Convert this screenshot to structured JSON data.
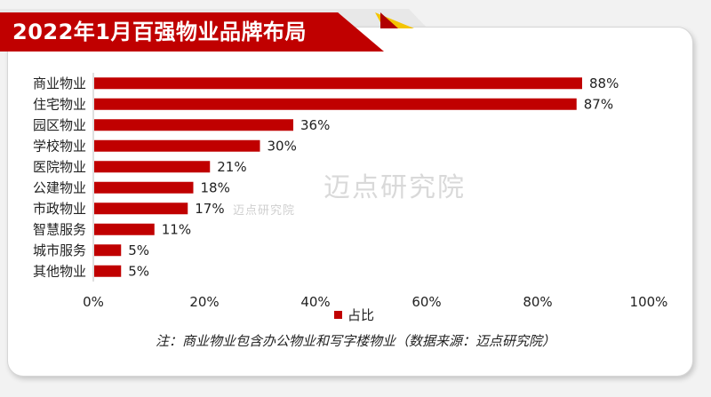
{
  "title": "2022年1月百强物业品牌布局",
  "legend": {
    "label": "占比"
  },
  "note": "注：商业物业包含办公物业和写字楼物业（数据来源：迈点研究院）",
  "watermark": {
    "text": "迈点研究院",
    "small_text": "迈点研究院"
  },
  "colors": {
    "bar": "#c00000",
    "banner": "#c00000",
    "accent": "#f4c400"
  },
  "chart_data": {
    "type": "bar",
    "orientation": "horizontal",
    "categories": [
      "商业物业",
      "住宅物业",
      "园区物业",
      "学校物业",
      "医院物业",
      "公建物业",
      "市政物业",
      "智慧服务",
      "城市服务",
      "其他物业"
    ],
    "series": [
      {
        "name": "占比",
        "values": [
          88,
          87,
          36,
          30,
          21,
          18,
          17,
          11,
          5,
          5
        ]
      }
    ],
    "value_labels": [
      "88%",
      "87%",
      "36%",
      "30%",
      "21%",
      "18%",
      "17%",
      "11%",
      "5%",
      "5%"
    ],
    "xticks": [
      "0%",
      "20%",
      "40%",
      "60%",
      "80%",
      "100%"
    ],
    "xlim": [
      0,
      100
    ],
    "grid": false,
    "legend_position": "bottom"
  }
}
